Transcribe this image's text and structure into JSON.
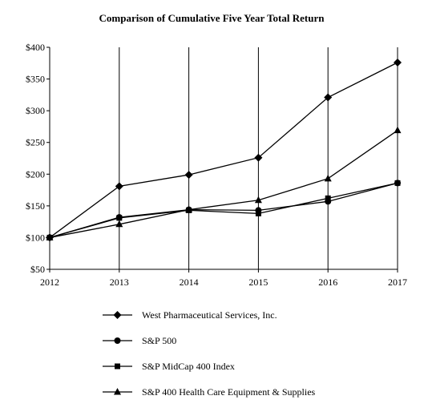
{
  "chart_data": {
    "type": "line",
    "title": "Comparison of Cumulative Five Year Total Return",
    "xlabel": "",
    "ylabel": "",
    "x": [
      "2012",
      "2013",
      "2014",
      "2015",
      "2016",
      "2017"
    ],
    "ylim": [
      50,
      400
    ],
    "yticks": [
      50,
      100,
      150,
      200,
      250,
      300,
      350,
      400
    ],
    "ytick_labels": [
      "$50",
      "$100",
      "$150",
      "$200",
      "$250",
      "$300",
      "$350",
      "$400"
    ],
    "grid": "vertical",
    "legend_placement": "bottom",
    "series": [
      {
        "name": "West Pharmaceutical Services, Inc.",
        "marker": "diamond",
        "values": [
          100,
          181,
          199,
          226,
          321,
          376
        ]
      },
      {
        "name": "S&P 500",
        "marker": "circle",
        "values": [
          100,
          132,
          144,
          143,
          157,
          186
        ]
      },
      {
        "name": "S&P MidCap 400 Index",
        "marker": "square",
        "values": [
          100,
          131,
          143,
          138,
          162,
          186
        ]
      },
      {
        "name": "S&P 400 Health Care Equipment & Supplies",
        "marker": "triangle",
        "values": [
          100,
          121,
          144,
          159,
          193,
          269
        ]
      }
    ],
    "color": "#000000"
  }
}
